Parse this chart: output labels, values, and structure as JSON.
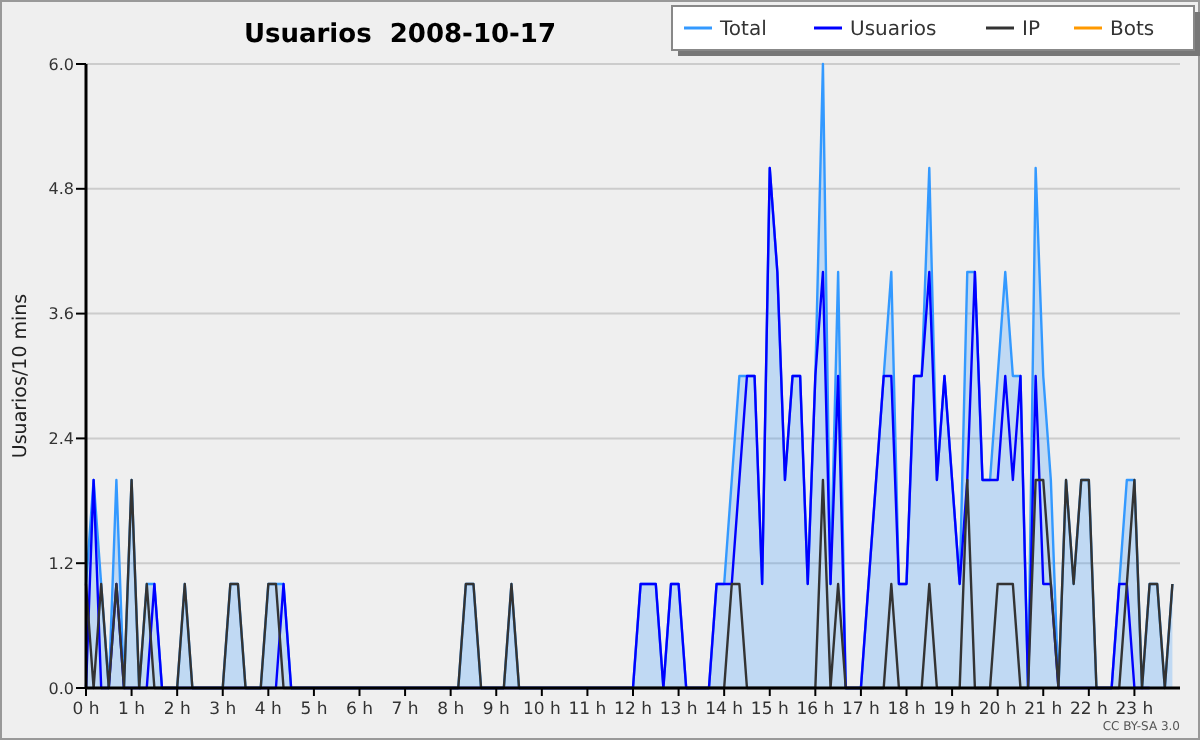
{
  "chart_data": {
    "type": "line",
    "title": "Usuarios  2008-10-17",
    "ylabel": "Usuarios/10 mins",
    "annotations": [
      "CC BY-SA 3.0"
    ],
    "x": [
      0,
      0.1667,
      0.3333,
      0.5,
      0.6667,
      0.8333,
      1,
      1.1667,
      1.3333,
      1.5,
      1.6667,
      1.8333,
      2,
      2.1667,
      2.3333,
      2.5,
      2.6667,
      2.8333,
      3,
      3.1667,
      3.3333,
      3.5,
      3.6667,
      3.8333,
      4,
      4.1667,
      4.3333,
      4.5,
      4.6667,
      4.8333,
      5,
      5.1667,
      5.3333,
      5.5,
      5.6667,
      5.8333,
      6,
      6.1667,
      6.3333,
      6.5,
      6.6667,
      6.8333,
      7,
      7.1667,
      7.3333,
      7.5,
      7.6667,
      7.8333,
      8,
      8.1667,
      8.3333,
      8.5,
      8.6667,
      8.8333,
      9,
      9.1667,
      9.3333,
      9.5,
      9.6667,
      9.8333,
      10,
      10.1667,
      10.3333,
      10.5,
      10.6667,
      10.8333,
      11,
      11.1667,
      11.3333,
      11.5,
      11.6667,
      11.8333,
      12,
      12.1667,
      12.3333,
      12.5,
      12.6667,
      12.8333,
      13,
      13.1667,
      13.3333,
      13.5,
      13.6667,
      13.8333,
      14,
      14.1667,
      14.3333,
      14.5,
      14.6667,
      14.8333,
      15,
      15.1667,
      15.3333,
      15.5,
      15.6667,
      15.8333,
      16,
      16.1667,
      16.3333,
      16.5,
      16.6667,
      16.8333,
      17,
      17.1667,
      17.3333,
      17.5,
      17.6667,
      17.8333,
      18,
      18.1667,
      18.3333,
      18.5,
      18.6667,
      18.8333,
      19,
      19.1667,
      19.3333,
      19.5,
      19.6667,
      19.8333,
      20,
      20.1667,
      20.3333,
      20.5,
      20.6667,
      20.8333,
      21,
      21.1667,
      21.3333,
      21.5,
      21.6667,
      21.8333,
      22,
      22.1667,
      22.3333,
      22.5,
      22.6667,
      22.8333,
      23,
      23.1667,
      23.3333,
      23.5,
      23.6667,
      23.8333
    ],
    "xlim": [
      0,
      24
    ],
    "xticks": [
      {
        "value": 0,
        "label": "0 h"
      },
      {
        "value": 1,
        "label": "1 h"
      },
      {
        "value": 2,
        "label": "2 h"
      },
      {
        "value": 3,
        "label": "3 h"
      },
      {
        "value": 4,
        "label": "4 h"
      },
      {
        "value": 5,
        "label": "5 h"
      },
      {
        "value": 6,
        "label": "6 h"
      },
      {
        "value": 7,
        "label": "7 h"
      },
      {
        "value": 8,
        "label": "8 h"
      },
      {
        "value": 9,
        "label": "9 h"
      },
      {
        "value": 10,
        "label": "10 h"
      },
      {
        "value": 11,
        "label": "11 h"
      },
      {
        "value": 12,
        "label": "12 h"
      },
      {
        "value": 13,
        "label": "13 h"
      },
      {
        "value": 14,
        "label": "14 h"
      },
      {
        "value": 15,
        "label": "15 h"
      },
      {
        "value": 16,
        "label": "16 h"
      },
      {
        "value": 17,
        "label": "17 h"
      },
      {
        "value": 18,
        "label": "18 h"
      },
      {
        "value": 19,
        "label": "19 h"
      },
      {
        "value": 20,
        "label": "20 h"
      },
      {
        "value": 21,
        "label": "21 h"
      },
      {
        "value": 22,
        "label": "22 h"
      },
      {
        "value": 23,
        "label": "23 h"
      }
    ],
    "ylim": [
      0,
      6
    ],
    "yticks": [
      {
        "value": 0,
        "label": "0.0"
      },
      1.2,
      2.4,
      3.6,
      4.8,
      {
        "value": 6,
        "label": "6.0"
      }
    ],
    "grid": "y",
    "legend": "top right",
    "marker": "none",
    "line_style": "solid",
    "series": [
      {
        "name": "Total",
        "type": "area",
        "color": "#3399ff",
        "values": [
          1,
          2,
          1,
          0,
          2,
          0,
          2,
          0,
          1,
          1,
          0,
          0,
          0,
          1,
          0,
          0,
          0,
          0,
          0,
          1,
          1,
          0,
          0,
          0,
          1,
          1,
          1,
          0,
          0,
          0,
          0,
          0,
          0,
          0,
          0,
          0,
          0,
          0,
          0,
          0,
          0,
          0,
          0,
          0,
          0,
          0,
          0,
          0,
          0,
          0,
          1,
          1,
          0,
          0,
          0,
          0,
          1,
          0,
          0,
          0,
          0,
          0,
          0,
          0,
          0,
          0,
          0,
          0,
          0,
          0,
          0,
          0,
          0,
          1,
          1,
          1,
          0,
          1,
          1,
          0,
          0,
          0,
          0,
          1,
          1,
          2,
          3,
          3,
          3,
          1,
          5,
          4,
          2,
          3,
          3,
          1,
          3,
          6,
          1,
          4,
          0,
          0,
          0,
          1,
          2,
          3,
          4,
          1,
          1,
          3,
          3,
          5,
          2,
          3,
          2,
          1,
          4,
          4,
          2,
          2,
          3,
          4,
          3,
          3,
          0,
          5,
          3,
          2,
          0,
          2,
          1,
          2,
          2,
          0,
          0,
          0,
          1,
          2,
          2,
          0,
          1,
          1,
          0,
          1
        ]
      },
      {
        "name": "Usuarios",
        "color": "#0000ff",
        "values": [
          0,
          2,
          0,
          0,
          1,
          0,
          0,
          0,
          0,
          1,
          0,
          0,
          0,
          0,
          0,
          0,
          0,
          0,
          0,
          0,
          0,
          0,
          0,
          0,
          0,
          0,
          1,
          0,
          0,
          0,
          0,
          0,
          0,
          0,
          0,
          0,
          0,
          0,
          0,
          0,
          0,
          0,
          0,
          0,
          0,
          0,
          0,
          0,
          0,
          0,
          0,
          0,
          0,
          0,
          0,
          0,
          0,
          0,
          0,
          0,
          0,
          0,
          0,
          0,
          0,
          0,
          0,
          0,
          0,
          0,
          0,
          0,
          0,
          1,
          1,
          1,
          0,
          1,
          1,
          0,
          0,
          0,
          0,
          1,
          1,
          1,
          2,
          3,
          3,
          1,
          5,
          4,
          2,
          3,
          3,
          1,
          3,
          4,
          1,
          3,
          0,
          0,
          0,
          1,
          2,
          3,
          3,
          1,
          1,
          3,
          3,
          4,
          2,
          3,
          2,
          1,
          2,
          4,
          2,
          2,
          2,
          3,
          2,
          3,
          0,
          3,
          1,
          1,
          0,
          0,
          0,
          0,
          0,
          0,
          0,
          0,
          1,
          1,
          0,
          0,
          0,
          null,
          null,
          null
        ]
      },
      {
        "name": "IP",
        "color": "#333333",
        "values": [
          1,
          0,
          1,
          0,
          1,
          0,
          2,
          0,
          1,
          0,
          0,
          0,
          0,
          1,
          0,
          0,
          0,
          0,
          0,
          1,
          1,
          0,
          0,
          0,
          1,
          1,
          0,
          0,
          0,
          0,
          0,
          0,
          0,
          0,
          0,
          0,
          0,
          0,
          0,
          0,
          0,
          0,
          0,
          0,
          0,
          0,
          0,
          0,
          0,
          0,
          1,
          1,
          0,
          0,
          0,
          0,
          1,
          0,
          0,
          0,
          0,
          0,
          0,
          0,
          0,
          0,
          0,
          0,
          0,
          0,
          0,
          0,
          0,
          0,
          0,
          0,
          0,
          0,
          0,
          0,
          0,
          0,
          0,
          0,
          0,
          1,
          1,
          0,
          0,
          0,
          0,
          0,
          0,
          0,
          0,
          0,
          0,
          2,
          0,
          1,
          0,
          0,
          0,
          0,
          0,
          0,
          1,
          0,
          0,
          0,
          0,
          1,
          0,
          0,
          0,
          0,
          2,
          0,
          0,
          0,
          1,
          1,
          1,
          0,
          0,
          2,
          2,
          1,
          0,
          2,
          1,
          2,
          2,
          0,
          0,
          0,
          0,
          1,
          2,
          0,
          1,
          1,
          0,
          1
        ]
      },
      {
        "name": "Bots",
        "color": "#ff9900",
        "values": [
          null,
          null,
          null,
          null,
          null,
          null,
          null,
          null,
          null,
          null,
          null,
          null,
          null,
          null,
          null,
          null,
          null,
          null,
          null,
          null,
          null,
          null,
          null,
          null,
          null,
          null,
          null,
          null,
          null,
          null,
          null,
          null,
          null,
          null,
          null,
          null,
          null,
          null,
          null,
          null,
          null,
          null,
          null,
          null,
          null,
          null,
          null,
          null,
          null,
          null,
          null,
          null,
          null,
          null,
          null,
          null,
          null,
          null,
          null,
          null,
          null,
          null,
          null,
          null,
          null,
          null,
          null,
          null,
          null,
          null,
          null,
          null,
          null,
          null,
          null,
          null,
          null,
          null,
          null,
          null,
          null,
          null,
          null,
          null,
          null,
          null,
          null,
          null,
          null,
          null,
          null,
          null,
          null,
          null,
          null,
          null,
          null,
          null,
          null,
          null,
          null,
          null,
          null,
          null,
          null,
          null,
          null,
          null,
          null,
          null,
          null,
          null,
          null,
          null,
          null,
          null,
          null,
          null,
          null,
          null,
          null,
          null,
          null,
          null,
          null,
          null,
          null,
          null,
          null,
          null,
          null,
          null,
          null,
          null,
          null,
          null,
          null,
          null,
          null,
          null,
          null,
          null,
          null,
          null
        ]
      }
    ]
  }
}
